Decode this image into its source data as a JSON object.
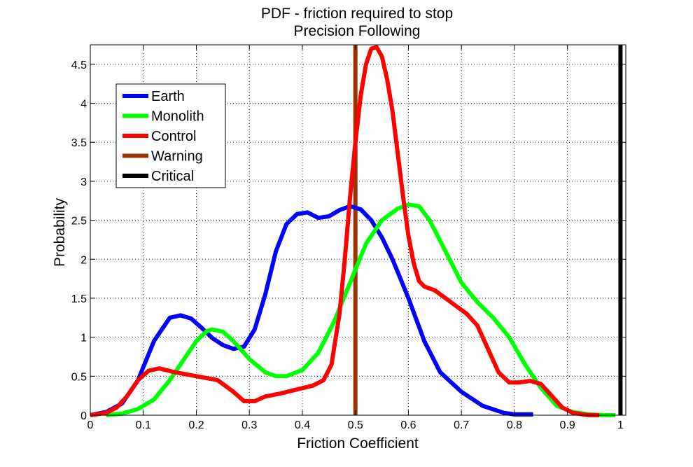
{
  "chart_data": {
    "type": "line",
    "title": "PDF - friction required to stop",
    "subtitle": "Precision Following",
    "xlabel": "Friction Coefficient",
    "ylabel": "Probability",
    "xlim": [
      0,
      1.01
    ],
    "ylim": [
      0,
      4.75
    ],
    "xticks": [
      0,
      0.1,
      0.2,
      0.3,
      0.4,
      0.5,
      0.6,
      0.7,
      0.8,
      0.9,
      1
    ],
    "xtick_labels": [
      "0",
      "0.1",
      "0.2",
      "0.3",
      "0.4",
      "0.5",
      "0.6",
      "0.7",
      "0.8",
      "0.9",
      "1"
    ],
    "yticks": [
      0,
      0.5,
      1,
      1.5,
      2,
      2.5,
      3,
      3.5,
      4,
      4.5
    ],
    "ytick_labels": [
      "0",
      "0.5",
      "1",
      "1.5",
      "2",
      "2.5",
      "3",
      "3.5",
      "4",
      "4.5"
    ],
    "grid": true,
    "legend_position": "top-left",
    "series": [
      {
        "name": "Earth",
        "color": "#0000ff",
        "x": [
          0,
          0.03,
          0.06,
          0.09,
          0.12,
          0.15,
          0.17,
          0.19,
          0.21,
          0.23,
          0.25,
          0.27,
          0.29,
          0.31,
          0.33,
          0.35,
          0.37,
          0.39,
          0.41,
          0.43,
          0.45,
          0.47,
          0.49,
          0.51,
          0.53,
          0.55,
          0.57,
          0.6,
          0.63,
          0.66,
          0.7,
          0.74,
          0.78,
          0.8,
          0.835
        ],
        "y": [
          0,
          0.04,
          0.15,
          0.45,
          0.95,
          1.25,
          1.28,
          1.24,
          1.12,
          0.99,
          0.9,
          0.85,
          0.88,
          1.1,
          1.55,
          2.1,
          2.45,
          2.58,
          2.6,
          2.53,
          2.55,
          2.63,
          2.68,
          2.64,
          2.5,
          2.28,
          2.0,
          1.5,
          0.95,
          0.55,
          0.3,
          0.12,
          0.03,
          0.01,
          0.01
        ]
      },
      {
        "name": "Monolith",
        "color": "#00ff00",
        "x": [
          0.03,
          0.06,
          0.09,
          0.12,
          0.15,
          0.18,
          0.2,
          0.22,
          0.23,
          0.25,
          0.27,
          0.3,
          0.33,
          0.35,
          0.37,
          0.4,
          0.43,
          0.46,
          0.49,
          0.52,
          0.55,
          0.58,
          0.6,
          0.62,
          0.64,
          0.67,
          0.7,
          0.73,
          0.76,
          0.79,
          0.82,
          0.85,
          0.88,
          0.91,
          0.94,
          0.97,
          0.99
        ],
        "y": [
          0,
          0.02,
          0.08,
          0.2,
          0.45,
          0.75,
          0.95,
          1.08,
          1.1,
          1.07,
          0.95,
          0.72,
          0.55,
          0.5,
          0.5,
          0.58,
          0.8,
          1.2,
          1.7,
          2.2,
          2.5,
          2.65,
          2.7,
          2.68,
          2.5,
          2.1,
          1.7,
          1.45,
          1.25,
          1.0,
          0.65,
          0.35,
          0.12,
          0.04,
          0.01,
          0.0,
          0.0
        ]
      },
      {
        "name": "Control",
        "color": "#ff0000",
        "x": [
          0,
          0.03,
          0.05,
          0.07,
          0.09,
          0.11,
          0.13,
          0.16,
          0.2,
          0.24,
          0.27,
          0.29,
          0.31,
          0.33,
          0.36,
          0.39,
          0.42,
          0.44,
          0.455,
          0.47,
          0.48,
          0.49,
          0.5,
          0.51,
          0.52,
          0.53,
          0.54,
          0.55,
          0.56,
          0.57,
          0.58,
          0.59,
          0.6,
          0.61,
          0.62,
          0.63,
          0.65,
          0.67,
          0.69,
          0.71,
          0.73,
          0.75,
          0.77,
          0.79,
          0.81,
          0.83,
          0.85,
          0.87,
          0.89,
          0.91,
          0.94,
          0.96
        ],
        "y": [
          0,
          0.03,
          0.1,
          0.25,
          0.45,
          0.57,
          0.6,
          0.55,
          0.5,
          0.45,
          0.3,
          0.18,
          0.18,
          0.24,
          0.28,
          0.33,
          0.38,
          0.45,
          0.65,
          1.3,
          2.0,
          2.8,
          3.5,
          4.1,
          4.5,
          4.7,
          4.72,
          4.6,
          4.3,
          3.9,
          3.35,
          2.8,
          2.3,
          1.95,
          1.72,
          1.65,
          1.6,
          1.5,
          1.4,
          1.3,
          1.15,
          0.85,
          0.55,
          0.42,
          0.42,
          0.44,
          0.4,
          0.25,
          0.1,
          0.03,
          0.0,
          0.0
        ]
      },
      {
        "name": "Warning",
        "color": "#993300",
        "x": [
          0.5,
          0.5
        ],
        "y": [
          0,
          4.75
        ]
      },
      {
        "name": "Critical",
        "color": "#000000",
        "x": [
          1.0,
          1.0
        ],
        "y": [
          0,
          4.75
        ]
      }
    ]
  }
}
